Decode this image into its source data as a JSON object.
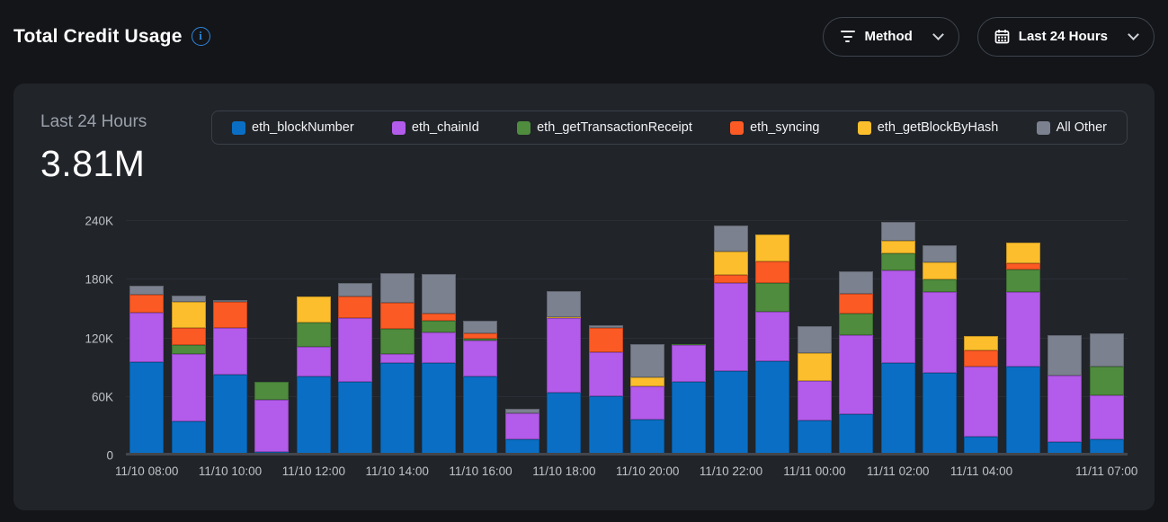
{
  "header": {
    "title": "Total Credit Usage",
    "method_dropdown_label": "Method",
    "time_range_label": "Last 24 Hours"
  },
  "panel": {
    "period_label": "Last 24 Hours",
    "total_value": "3.81M"
  },
  "colors": {
    "accent_info": "#2e86de",
    "page_bg": "#131519",
    "panel_bg": "#212429"
  },
  "chart_data": {
    "type": "bar",
    "stacked": true,
    "title": "Total Credit Usage — Last 24 Hours",
    "unit": "credits (values in thousands)",
    "ylim": [
      0,
      240
    ],
    "ytick_labels": [
      "0",
      "60K",
      "120K",
      "180K",
      "240K"
    ],
    "ytick_values": [
      0,
      60,
      120,
      180,
      240
    ],
    "grid": "horizontal",
    "legend_position": "top",
    "categories": [
      "11/10 08:00",
      "11/10 09:00",
      "11/10 10:00",
      "11/10 11:00",
      "11/10 12:00",
      "11/10 13:00",
      "11/10 14:00",
      "11/10 15:00",
      "11/10 16:00",
      "11/10 17:00",
      "11/10 18:00",
      "11/10 19:00",
      "11/10 20:00",
      "11/10 21:00",
      "11/10 22:00",
      "11/10 23:00",
      "11/11 00:00",
      "11/11 01:00",
      "11/11 02:00",
      "11/11 03:00",
      "11/11 04:00",
      "11/11 05:00",
      "11/11 06:00",
      "11/11 07:00"
    ],
    "xticks": [
      {
        "index": 0,
        "label": "11/10 08:00"
      },
      {
        "index": 2,
        "label": "11/10 10:00"
      },
      {
        "index": 4,
        "label": "11/10 12:00"
      },
      {
        "index": 6,
        "label": "11/10 14:00"
      },
      {
        "index": 8,
        "label": "11/10 16:00"
      },
      {
        "index": 10,
        "label": "11/10 18:00"
      },
      {
        "index": 12,
        "label": "11/10 20:00"
      },
      {
        "index": 14,
        "label": "11/10 22:00"
      },
      {
        "index": 16,
        "label": "11/11 00:00"
      },
      {
        "index": 18,
        "label": "11/11 02:00"
      },
      {
        "index": 20,
        "label": "11/11 04:00"
      },
      {
        "index": 23,
        "label": "11/11 07:00"
      }
    ],
    "series": [
      {
        "name": "eth_blockNumber",
        "color": "#0a6fc4",
        "values_k": [
          96,
          35,
          83,
          4,
          81,
          75,
          95,
          95,
          81,
          17,
          64,
          61,
          37,
          75,
          86,
          97,
          36,
          42,
          95,
          85,
          19,
          91,
          14,
          17
        ]
      },
      {
        "name": "eth_chainId",
        "color": "#b35bea",
        "values_k": [
          50,
          69,
          48,
          53,
          30,
          66,
          9,
          31,
          37,
          26,
          77,
          45,
          34,
          38,
          91,
          50,
          40,
          81,
          94,
          82,
          72,
          76,
          68,
          45
        ]
      },
      {
        "name": "eth_getTransactionReceipt",
        "color": "#4f8c3e",
        "values_k": [
          0,
          9,
          0,
          18,
          25,
          0,
          26,
          12,
          2,
          0,
          0,
          0,
          0,
          1,
          0,
          30,
          0,
          22,
          18,
          13,
          0,
          23,
          0,
          29
        ]
      },
      {
        "name": "eth_syncing",
        "color": "#fb5a24",
        "values_k": [
          19,
          18,
          26,
          0,
          0,
          22,
          26,
          7,
          5,
          0,
          0,
          25,
          0,
          0,
          8,
          22,
          0,
          21,
          0,
          0,
          17,
          7,
          0,
          0
        ]
      },
      {
        "name": "eth_getBlockByHash",
        "color": "#fcbe2c",
        "values_k": [
          0,
          26,
          0,
          0,
          27,
          0,
          0,
          0,
          0,
          0,
          1,
          0,
          9,
          0,
          24,
          27,
          29,
          0,
          13,
          18,
          14,
          21,
          0,
          0
        ]
      },
      {
        "name": "All Other",
        "color": "#7b818e",
        "values_k": [
          9,
          7,
          2,
          0,
          0,
          14,
          31,
          41,
          13,
          5,
          26,
          2,
          34,
          0,
          26,
          0,
          27,
          23,
          19,
          17,
          0,
          0,
          41,
          34
        ]
      }
    ]
  }
}
